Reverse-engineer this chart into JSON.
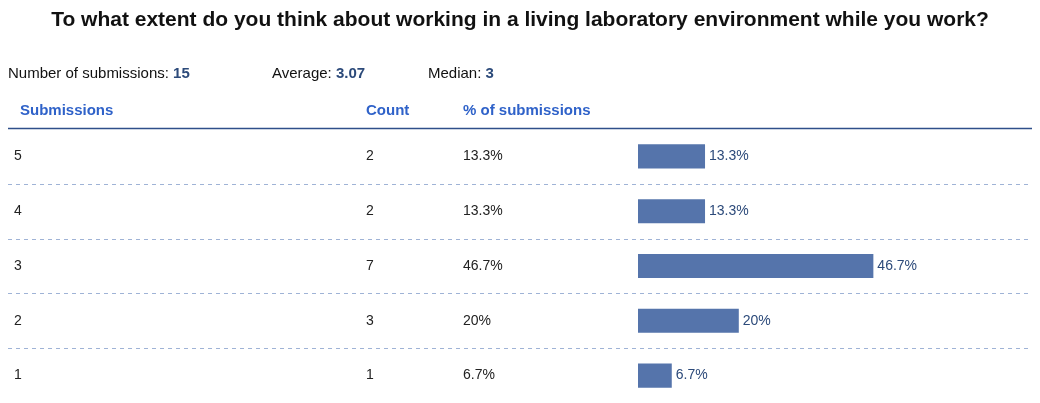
{
  "chart_data": {
    "type": "bar",
    "orientation": "horizontal",
    "title": "To what extent do you think about working in a living laboratory environment while you work?",
    "ylabel": "Submissions",
    "xlabel": "% of submissions",
    "categories": [
      "5",
      "4",
      "3",
      "2",
      "1"
    ],
    "values": [
      13.3,
      13.3,
      46.7,
      20,
      6.7
    ],
    "value_labels": [
      "13.3%",
      "13.3%",
      "46.7%",
      "20%",
      "6.7%"
    ],
    "color": "#5574ab",
    "grid": "y",
    "legend": false,
    "annotations": [
      "Number of submissions: 15",
      "Average: 3.07",
      "Median: 3",
      "Count",
      "2",
      "2",
      "7",
      "3",
      "1"
    ]
  }
}
